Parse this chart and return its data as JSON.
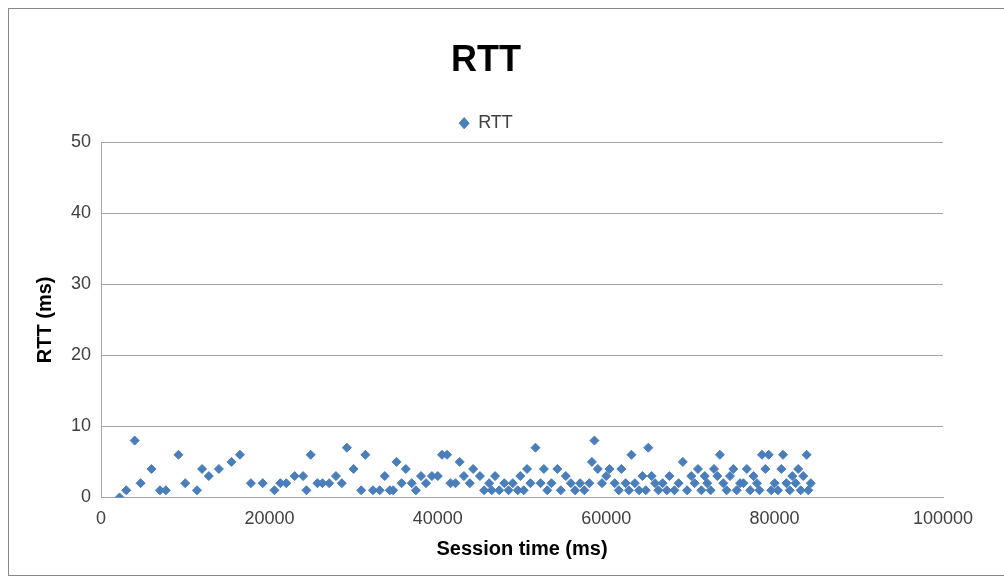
{
  "chart_data": {
    "type": "scatter",
    "title": "RTT",
    "xlabel": "Session time (ms)",
    "ylabel": "RTT (ms)",
    "legend": "top",
    "marker": "diamond",
    "grid": "y",
    "xlim": [
      0,
      100000
    ],
    "xticks": [
      0,
      20000,
      40000,
      60000,
      80000,
      100000
    ],
    "ylim": [
      0,
      50
    ],
    "yticks": [
      0,
      10,
      20,
      30,
      40,
      50
    ],
    "series": [
      {
        "name": "RTT",
        "color": "#4a7ebb",
        "x": [
          2200,
          3000,
          4000,
          4700,
          6000,
          7000,
          7700,
          9200,
          10000,
          11400,
          12000,
          12800,
          14000,
          15500,
          16500,
          17800,
          19200,
          20600,
          21300,
          22000,
          23000,
          24000,
          24400,
          24900,
          25700,
          26300,
          27100,
          27900,
          28600,
          29200,
          30000,
          30900,
          31400,
          32300,
          33100,
          33700,
          34300,
          34700,
          35100,
          35700,
          36200,
          36900,
          37400,
          38000,
          38600,
          39300,
          40000,
          40500,
          41100,
          41500,
          42100,
          42600,
          43100,
          43800,
          44200,
          45000,
          45500,
          46100,
          46400,
          46800,
          47300,
          47900,
          48400,
          48900,
          49500,
          49800,
          50200,
          50600,
          51000,
          51600,
          52200,
          52600,
          53000,
          53500,
          54200,
          54600,
          55200,
          55800,
          56300,
          56900,
          57400,
          58000,
          58300,
          58600,
          59000,
          59500,
          60000,
          60400,
          61000,
          61500,
          61800,
          62300,
          62700,
          63000,
          63400,
          63900,
          64300,
          64700,
          65000,
          65400,
          65800,
          66200,
          66700,
          67200,
          67500,
          68100,
          68600,
          69100,
          69600,
          70100,
          70500,
          70900,
          71300,
          71700,
          72000,
          72400,
          72800,
          73200,
          73500,
          73900,
          74300,
          74700,
          75100,
          75500,
          75900,
          76300,
          76700,
          77100,
          77500,
          77900,
          78200,
          78500,
          78900,
          79300,
          79600,
          80000,
          80400,
          80800,
          81000,
          81400,
          81800,
          82100,
          82500,
          82800,
          83100,
          83400,
          83800,
          84000,
          84300
        ],
        "values": [
          0,
          1,
          8,
          2,
          4,
          1,
          1,
          6,
          2,
          1,
          4,
          3,
          4,
          5,
          6,
          2,
          2,
          1,
          2,
          2,
          3,
          3,
          1,
          6,
          2,
          2,
          2,
          3,
          2,
          7,
          4,
          1,
          6,
          1,
          1,
          3,
          1,
          1,
          5,
          2,
          4,
          2,
          1,
          3,
          2,
          3,
          3,
          6,
          6,
          2,
          2,
          5,
          3,
          2,
          4,
          3,
          1,
          2,
          1,
          3,
          1,
          2,
          1,
          2,
          1,
          3,
          1,
          4,
          2,
          7,
          2,
          4,
          1,
          2,
          4,
          1,
          3,
          2,
          1,
          2,
          1,
          2,
          5,
          8,
          4,
          2,
          3,
          4,
          2,
          1,
          4,
          2,
          1,
          6,
          2,
          1,
          3,
          1,
          7,
          3,
          2,
          1,
          2,
          1,
          3,
          1,
          2,
          5,
          1,
          3,
          2,
          4,
          1,
          3,
          2,
          1,
          4,
          3,
          6,
          2,
          1,
          3,
          4,
          1,
          2,
          2,
          4,
          1,
          3,
          2,
          1,
          6,
          4,
          6,
          1,
          2,
          1,
          4,
          6,
          2,
          1,
          3,
          2,
          4,
          1,
          3,
          6,
          1,
          2
        ]
      }
    ]
  }
}
